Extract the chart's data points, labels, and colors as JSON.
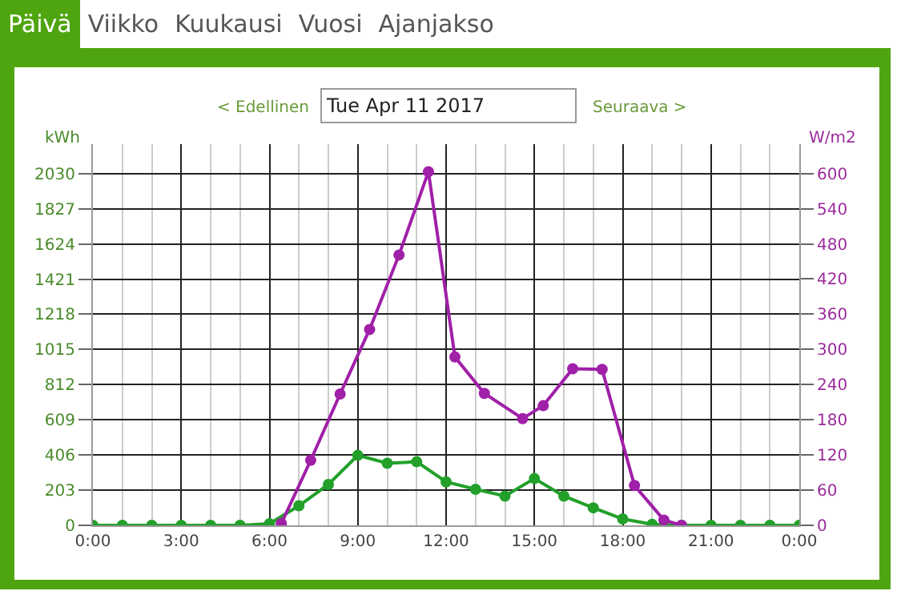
{
  "chart_data": {
    "type": "line",
    "title": "Tue Apr 11 2017",
    "annotations": [
      "Päivä",
      "Viikko",
      "Kuukausi",
      "Vuosi",
      "Ajanjakso",
      "< Edellinen",
      "Seuraava >"
    ],
    "ylabel": "kWh",
    "y2label": "W/m2",
    "xlim": [
      0,
      24
    ],
    "xticks": [
      {
        "value": 0,
        "label": "0:00"
      },
      {
        "value": 3,
        "label": "3:00"
      },
      {
        "value": 6,
        "label": "6:00"
      },
      {
        "value": 9,
        "label": "9:00"
      },
      {
        "value": 12,
        "label": "12:00"
      },
      {
        "value": 15,
        "label": "15:00"
      },
      {
        "value": 18,
        "label": "18:00"
      },
      {
        "value": 21,
        "label": "21:00"
      },
      {
        "value": 24,
        "label": "0:00"
      }
    ],
    "ylim": [
      0,
      2200
    ],
    "yticks": [
      0,
      203,
      406,
      609,
      812,
      1015,
      1218,
      1421,
      1624,
      1827,
      2030
    ],
    "y2lim": [
      0,
      650
    ],
    "y2ticks": [
      0,
      60,
      120,
      180,
      240,
      300,
      360,
      420,
      480,
      540,
      600
    ],
    "grid": true,
    "marker": "circle",
    "line_style": "solid",
    "series": [
      {
        "color": "#22a02a",
        "x": [
          0,
          1,
          2,
          3,
          4,
          5,
          6,
          7,
          8,
          9,
          10,
          11,
          12,
          13,
          14,
          15,
          16,
          17,
          18,
          19,
          20,
          21,
          22,
          23,
          24
        ],
        "values": [
          0,
          0,
          0,
          0,
          0,
          0,
          9,
          113,
          236,
          404,
          358,
          367,
          251,
          208,
          169,
          270,
          169,
          101,
          37,
          6,
          0,
          0,
          0,
          0,
          0
        ]
      },
      {
        "color": "#a020a8",
        "axis": "y2",
        "x": [
          6.4,
          7.4,
          8.4,
          9.4,
          10.4,
          11.4,
          12.3,
          13.3,
          14.6,
          15.3,
          16.3,
          17.3,
          18.4,
          19.4,
          20.0
        ],
        "values": [
          3,
          111,
          224,
          334,
          461,
          603,
          287,
          225,
          182,
          204,
          267,
          266,
          68,
          9,
          0
        ]
      }
    ]
  }
}
